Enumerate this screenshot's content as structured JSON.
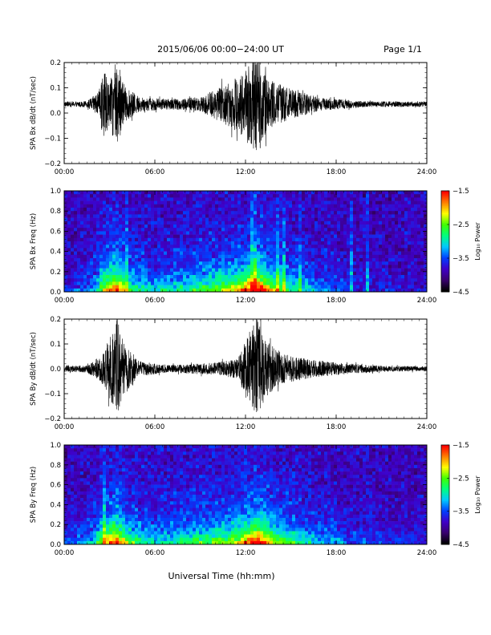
{
  "header": {
    "title": "2015/06/06  00:00−24:00 UT",
    "page": "Page 1/1"
  },
  "colors": {
    "trace": "#000000",
    "colorbar": [
      "#000000",
      "#3a0070",
      "#3f00c8",
      "#0040ff",
      "#00c8ff",
      "#00ff80",
      "#40ff00",
      "#ffff00",
      "#ff8000",
      "#ff0000"
    ]
  },
  "chart_data": [
    {
      "type": "line",
      "ylabel": "SPA Bx dB/dt (nT/sec)",
      "xlim": [
        0,
        24
      ],
      "ylim": [
        -0.2,
        0.2
      ],
      "xticks": [
        "00:00",
        "06:00",
        "12:00",
        "18:00",
        "24:00"
      ],
      "yticks": [
        "0.2",
        "0.1",
        "0.0",
        "−0.1",
        "−0.2"
      ],
      "baseline": 0.035,
      "envelope": [
        {
          "x": 0.0,
          "amp": 0.01
        },
        {
          "x": 1.5,
          "amp": 0.012
        },
        {
          "x": 2.3,
          "amp": 0.05
        },
        {
          "x": 2.6,
          "amp": 0.15
        },
        {
          "x": 3.0,
          "amp": 0.08
        },
        {
          "x": 3.5,
          "amp": 0.19
        },
        {
          "x": 4.0,
          "amp": 0.07
        },
        {
          "x": 5.0,
          "amp": 0.03
        },
        {
          "x": 7.0,
          "amp": 0.02
        },
        {
          "x": 9.0,
          "amp": 0.03
        },
        {
          "x": 10.0,
          "amp": 0.06
        },
        {
          "x": 11.0,
          "amp": 0.09
        },
        {
          "x": 11.7,
          "amp": 0.12
        },
        {
          "x": 12.3,
          "amp": 0.17
        },
        {
          "x": 12.8,
          "amp": 0.2
        },
        {
          "x": 13.5,
          "amp": 0.1
        },
        {
          "x": 14.5,
          "amp": 0.07
        },
        {
          "x": 15.5,
          "amp": 0.05
        },
        {
          "x": 17.0,
          "amp": 0.025
        },
        {
          "x": 20.0,
          "amp": 0.012
        },
        {
          "x": 24.0,
          "amp": 0.01
        }
      ]
    },
    {
      "type": "heatmap",
      "ylabel": "SPA Bx Freq (Hz)",
      "xlim": [
        0,
        24
      ],
      "ylim": [
        0,
        1.0
      ],
      "xticks": [
        "00:00",
        "06:00",
        "12:00",
        "18:00",
        "24:00"
      ],
      "yticks": [
        "1.0",
        "0.8",
        "0.6",
        "0.4",
        "0.2",
        "0.0"
      ],
      "colorbar_label": "Log₁₀ Power",
      "colorbar_range": [
        -4.5,
        -1.5
      ],
      "colorbar_ticks": [
        "−1.5",
        "−2.5",
        "−3.5",
        "−4.5"
      ],
      "activity": [
        {
          "x": 0.0,
          "level": 0.05
        },
        {
          "x": 2.0,
          "level": 0.25
        },
        {
          "x": 2.7,
          "level": 0.65
        },
        {
          "x": 3.5,
          "level": 0.85
        },
        {
          "x": 4.2,
          "level": 0.45
        },
        {
          "x": 6.0,
          "level": 0.3
        },
        {
          "x": 9.0,
          "level": 0.45
        },
        {
          "x": 11.0,
          "level": 0.6
        },
        {
          "x": 12.8,
          "level": 0.95
        },
        {
          "x": 14.0,
          "level": 0.55
        },
        {
          "x": 16.0,
          "level": 0.3
        },
        {
          "x": 19.0,
          "level": 0.1
        },
        {
          "x": 24.0,
          "level": 0.05
        }
      ]
    },
    {
      "type": "line",
      "ylabel": "SPA By dB/dt (nT/sec)",
      "xlim": [
        0,
        24
      ],
      "ylim": [
        -0.2,
        0.2
      ],
      "xticks": [
        "00:00",
        "06:00",
        "12:00",
        "18:00",
        "24:00"
      ],
      "yticks": [
        "0.2",
        "0.1",
        "0.0",
        "−0.1",
        "−0.2"
      ],
      "baseline": 0.0,
      "envelope": [
        {
          "x": 0.0,
          "amp": 0.012
        },
        {
          "x": 1.5,
          "amp": 0.015
        },
        {
          "x": 2.4,
          "amp": 0.05
        },
        {
          "x": 3.0,
          "amp": 0.12
        },
        {
          "x": 3.5,
          "amp": 0.2
        },
        {
          "x": 4.0,
          "amp": 0.1
        },
        {
          "x": 5.0,
          "amp": 0.03
        },
        {
          "x": 7.0,
          "amp": 0.015
        },
        {
          "x": 10.0,
          "amp": 0.025
        },
        {
          "x": 11.5,
          "amp": 0.04
        },
        {
          "x": 12.2,
          "amp": 0.15
        },
        {
          "x": 12.8,
          "amp": 0.2
        },
        {
          "x": 13.2,
          "amp": 0.12
        },
        {
          "x": 14.5,
          "amp": 0.06
        },
        {
          "x": 16.0,
          "amp": 0.04
        },
        {
          "x": 18.0,
          "amp": 0.025
        },
        {
          "x": 21.0,
          "amp": 0.012
        },
        {
          "x": 24.0,
          "amp": 0.01
        }
      ]
    },
    {
      "type": "heatmap",
      "ylabel": "SPA By Freq (Hz)",
      "xlim": [
        0,
        24
      ],
      "ylim": [
        0,
        1.0
      ],
      "xticks": [
        "00:00",
        "06:00",
        "12:00",
        "18:00",
        "24:00"
      ],
      "yticks": [
        "1.0",
        "0.8",
        "0.6",
        "0.4",
        "0.2",
        "0.0"
      ],
      "xlabel": "Universal Time (hh:mm)",
      "colorbar_label": "Log₁₀ Power",
      "colorbar_range": [
        -4.5,
        -1.5
      ],
      "colorbar_ticks": [
        "−1.5",
        "−2.5",
        "−3.5",
        "−4.5"
      ],
      "activity": [
        {
          "x": 0.0,
          "level": 0.08
        },
        {
          "x": 2.0,
          "level": 0.3
        },
        {
          "x": 2.7,
          "level": 0.7
        },
        {
          "x": 3.5,
          "level": 0.85
        },
        {
          "x": 4.3,
          "level": 0.5
        },
        {
          "x": 6.0,
          "level": 0.3
        },
        {
          "x": 9.0,
          "level": 0.45
        },
        {
          "x": 11.0,
          "level": 0.55
        },
        {
          "x": 12.8,
          "level": 0.95
        },
        {
          "x": 14.0,
          "level": 0.55
        },
        {
          "x": 16.0,
          "level": 0.35
        },
        {
          "x": 19.0,
          "level": 0.15
        },
        {
          "x": 24.0,
          "level": 0.08
        }
      ]
    }
  ]
}
